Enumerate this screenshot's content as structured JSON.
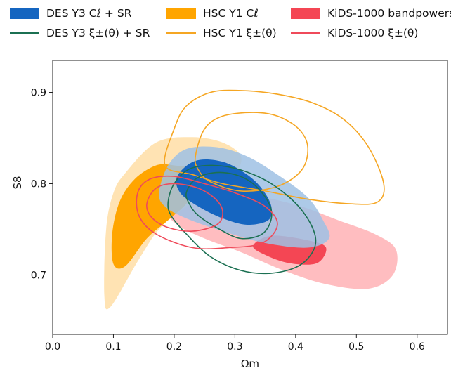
{
  "chart_data": {
    "type": "contour",
    "xlabel": "Ωm",
    "ylabel": "S8",
    "xlim": [
      0.0,
      0.65
    ],
    "ylim": [
      0.635,
      0.935
    ],
    "xticks": [
      "0.0",
      "0.1",
      "0.2",
      "0.3",
      "0.4",
      "0.5",
      "0.6"
    ],
    "yticks": [
      "0.7",
      "0.8",
      "0.9"
    ],
    "legend_placement": "top, three columns",
    "legend": [
      {
        "label": "DES Y3 Cℓ + SR",
        "style": "filled",
        "color": "#1565c0"
      },
      {
        "label": "HSC Y1 Cℓ",
        "style": "filled",
        "color": "#ffa500"
      },
      {
        "label": "KiDS-1000 bandpowers",
        "style": "filled",
        "color": "#f44654"
      },
      {
        "label": "DES Y3 ξ±(θ) + SR",
        "style": "line",
        "color": "#1b7052"
      },
      {
        "label": "HSC Y1 ξ±(θ)",
        "style": "line",
        "color": "#f5a623"
      },
      {
        "label": "KiDS-1000 ξ±(θ)",
        "style": "line",
        "color": "#ef4a5a"
      }
    ],
    "series": [
      {
        "label_ref": 2,
        "kind": "fill",
        "level": "95%",
        "color": "#ffb6b9",
        "opacity": 0.9,
        "points": [
          [
            0.19,
            0.772
          ],
          [
            0.23,
            0.797
          ],
          [
            0.29,
            0.793
          ],
          [
            0.35,
            0.785
          ],
          [
            0.41,
            0.775
          ],
          [
            0.47,
            0.76
          ],
          [
            0.53,
            0.745
          ],
          [
            0.565,
            0.728
          ],
          [
            0.56,
            0.7
          ],
          [
            0.52,
            0.685
          ],
          [
            0.45,
            0.69
          ],
          [
            0.38,
            0.705
          ],
          [
            0.31,
            0.725
          ],
          [
            0.25,
            0.74
          ],
          [
            0.205,
            0.755
          ]
        ]
      },
      {
        "label_ref": 2,
        "kind": "fill",
        "level": "68%",
        "color": "#f44654",
        "opacity": 1,
        "points": [
          [
            0.36,
            0.743
          ],
          [
            0.42,
            0.738
          ],
          [
            0.45,
            0.73
          ],
          [
            0.435,
            0.713
          ],
          [
            0.39,
            0.713
          ],
          [
            0.35,
            0.722
          ],
          [
            0.33,
            0.732
          ]
        ]
      },
      {
        "label_ref": 1,
        "kind": "fill",
        "level": "95%",
        "color": "#ffdfa8",
        "opacity": 0.88,
        "points": [
          [
            0.12,
            0.812
          ],
          [
            0.17,
            0.845
          ],
          [
            0.23,
            0.851
          ],
          [
            0.28,
            0.845
          ],
          [
            0.31,
            0.83
          ],
          [
            0.3,
            0.81
          ],
          [
            0.27,
            0.793
          ],
          [
            0.22,
            0.775
          ],
          [
            0.175,
            0.75
          ],
          [
            0.14,
            0.715
          ],
          [
            0.095,
            0.665
          ],
          [
            0.085,
            0.678
          ],
          [
            0.088,
            0.75
          ],
          [
            0.1,
            0.79
          ]
        ]
      },
      {
        "label_ref": 1,
        "kind": "fill",
        "level": "68%",
        "color": "#ffa500",
        "opacity": 1,
        "points": [
          [
            0.135,
            0.805
          ],
          [
            0.17,
            0.82
          ],
          [
            0.2,
            0.82
          ],
          [
            0.23,
            0.815
          ],
          [
            0.235,
            0.795
          ],
          [
            0.22,
            0.778
          ],
          [
            0.19,
            0.76
          ],
          [
            0.155,
            0.74
          ],
          [
            0.12,
            0.71
          ],
          [
            0.1,
            0.712
          ],
          [
            0.098,
            0.745
          ],
          [
            0.11,
            0.78
          ]
        ]
      },
      {
        "label_ref": 0,
        "kind": "fill",
        "level": "95%",
        "color": "#9fc1e4",
        "opacity": 0.85,
        "points": [
          [
            0.175,
            0.79
          ],
          [
            0.19,
            0.82
          ],
          [
            0.22,
            0.838
          ],
          [
            0.27,
            0.84
          ],
          [
            0.32,
            0.83
          ],
          [
            0.37,
            0.81
          ],
          [
            0.42,
            0.785
          ],
          [
            0.445,
            0.76
          ],
          [
            0.455,
            0.74
          ],
          [
            0.42,
            0.73
          ],
          [
            0.35,
            0.735
          ],
          [
            0.28,
            0.748
          ],
          [
            0.22,
            0.762
          ],
          [
            0.185,
            0.775
          ]
        ]
      },
      {
        "label_ref": 0,
        "kind": "fill",
        "level": "68%",
        "color": "#1565c0",
        "opacity": 1,
        "points": [
          [
            0.205,
            0.808
          ],
          [
            0.235,
            0.825
          ],
          [
            0.28,
            0.824
          ],
          [
            0.32,
            0.81
          ],
          [
            0.345,
            0.794
          ],
          [
            0.36,
            0.775
          ],
          [
            0.355,
            0.76
          ],
          [
            0.32,
            0.755
          ],
          [
            0.28,
            0.762
          ],
          [
            0.24,
            0.775
          ],
          [
            0.21,
            0.79
          ]
        ]
      },
      {
        "label_ref": 4,
        "kind": "line",
        "level": "95%",
        "color": "#f5a623",
        "points": [
          [
            0.185,
            0.82
          ],
          [
            0.2,
            0.86
          ],
          [
            0.22,
            0.885
          ],
          [
            0.26,
            0.9
          ],
          [
            0.31,
            0.902
          ],
          [
            0.37,
            0.898
          ],
          [
            0.43,
            0.888
          ],
          [
            0.48,
            0.87
          ],
          [
            0.52,
            0.84
          ],
          [
            0.545,
            0.8
          ],
          [
            0.535,
            0.78
          ],
          [
            0.49,
            0.778
          ],
          [
            0.42,
            0.783
          ],
          [
            0.35,
            0.792
          ],
          [
            0.28,
            0.8
          ],
          [
            0.23,
            0.81
          ]
        ]
      },
      {
        "label_ref": 4,
        "kind": "line",
        "level": "68%",
        "color": "#f5a623",
        "points": [
          [
            0.235,
            0.83
          ],
          [
            0.25,
            0.86
          ],
          [
            0.28,
            0.874
          ],
          [
            0.33,
            0.878
          ],
          [
            0.37,
            0.874
          ],
          [
            0.405,
            0.86
          ],
          [
            0.42,
            0.84
          ],
          [
            0.41,
            0.815
          ],
          [
            0.37,
            0.797
          ],
          [
            0.31,
            0.792
          ],
          [
            0.26,
            0.802
          ],
          [
            0.24,
            0.815
          ]
        ]
      },
      {
        "label_ref": 3,
        "kind": "line",
        "level": "95%",
        "color": "#1b7052",
        "points": [
          [
            0.19,
            0.78
          ],
          [
            0.2,
            0.8
          ],
          [
            0.225,
            0.816
          ],
          [
            0.265,
            0.82
          ],
          [
            0.31,
            0.815
          ],
          [
            0.36,
            0.8
          ],
          [
            0.405,
            0.775
          ],
          [
            0.43,
            0.748
          ],
          [
            0.43,
            0.728
          ],
          [
            0.405,
            0.71
          ],
          [
            0.36,
            0.702
          ],
          [
            0.31,
            0.705
          ],
          [
            0.26,
            0.72
          ],
          [
            0.22,
            0.745
          ],
          [
            0.195,
            0.765
          ]
        ]
      },
      {
        "label_ref": 3,
        "kind": "line",
        "level": "68%",
        "color": "#1b7052",
        "points": [
          [
            0.22,
            0.79
          ],
          [
            0.235,
            0.805
          ],
          [
            0.265,
            0.812
          ],
          [
            0.3,
            0.81
          ],
          [
            0.33,
            0.8
          ],
          [
            0.355,
            0.78
          ],
          [
            0.36,
            0.762
          ],
          [
            0.345,
            0.745
          ],
          [
            0.31,
            0.74
          ],
          [
            0.275,
            0.75
          ],
          [
            0.24,
            0.765
          ],
          [
            0.225,
            0.778
          ]
        ]
      },
      {
        "label_ref": 5,
        "kind": "line",
        "level": "95%",
        "color": "#ef4a5a",
        "points": [
          [
            0.14,
            0.79
          ],
          [
            0.16,
            0.805
          ],
          [
            0.2,
            0.808
          ],
          [
            0.25,
            0.8
          ],
          [
            0.3,
            0.79
          ],
          [
            0.35,
            0.775
          ],
          [
            0.37,
            0.755
          ],
          [
            0.345,
            0.735
          ],
          [
            0.29,
            0.73
          ],
          [
            0.23,
            0.73
          ],
          [
            0.17,
            0.745
          ],
          [
            0.142,
            0.765
          ]
        ]
      },
      {
        "label_ref": 5,
        "kind": "line",
        "level": "68%",
        "color": "#ef4a5a",
        "points": [
          [
            0.155,
            0.778
          ],
          [
            0.17,
            0.795
          ],
          [
            0.2,
            0.8
          ],
          [
            0.24,
            0.795
          ],
          [
            0.27,
            0.782
          ],
          [
            0.28,
            0.768
          ],
          [
            0.27,
            0.755
          ],
          [
            0.23,
            0.748
          ],
          [
            0.19,
            0.752
          ],
          [
            0.163,
            0.763
          ]
        ]
      }
    ]
  }
}
